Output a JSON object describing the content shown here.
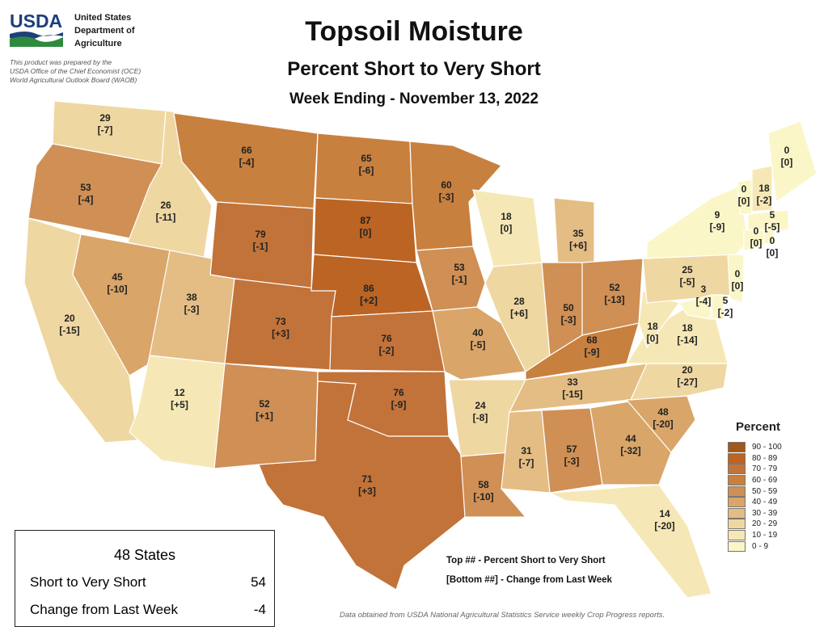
{
  "header": {
    "logo_text": "USDA",
    "agency_lines": [
      "United States",
      "Department of",
      "Agriculture"
    ],
    "credit_lines": [
      "This product was prepared by the",
      "USDA Office of the Chief Economist (OCE)",
      "World Agricultural Outlook Board (WAOB)"
    ],
    "title": "Topsoil Moisture",
    "subtitle": "Percent Short to Very Short",
    "date_line": "Week Ending - November 13, 2022"
  },
  "legend": {
    "title": "Percent",
    "classes": [
      {
        "label": "90 - 100",
        "color": "#a4561b"
      },
      {
        "label": "80 - 89",
        "color": "#bb6424"
      },
      {
        "label": "70 - 79",
        "color": "#c2733a"
      },
      {
        "label": "60 - 69",
        "color": "#c8803f"
      },
      {
        "label": "50 - 59",
        "color": "#cf8f55"
      },
      {
        "label": "40 - 49",
        "color": "#d9a569"
      },
      {
        "label": "30 - 39",
        "color": "#e4bd84"
      },
      {
        "label": "20 - 29",
        "color": "#efd7a2"
      },
      {
        "label": "10 - 19",
        "color": "#f6e8b6"
      },
      {
        "label": "0 - 9",
        "color": "#fbf6c8"
      }
    ]
  },
  "states": [
    {
      "code": "WA",
      "value": "29",
      "change": "[-7]"
    },
    {
      "code": "OR",
      "value": "53",
      "change": "[-4]"
    },
    {
      "code": "CA",
      "value": "20",
      "change": "[-15]"
    },
    {
      "code": "ID",
      "value": "26",
      "change": "[-11]"
    },
    {
      "code": "NV",
      "value": "45",
      "change": "[-10]"
    },
    {
      "code": "MT",
      "value": "66",
      "change": "[-4]"
    },
    {
      "code": "WY",
      "value": "79",
      "change": "[-1]"
    },
    {
      "code": "UT",
      "value": "38",
      "change": "[-3]"
    },
    {
      "code": "AZ",
      "value": "12",
      "change": "[+5]"
    },
    {
      "code": "CO",
      "value": "73",
      "change": "[+3]"
    },
    {
      "code": "NM",
      "value": "52",
      "change": "[+1]"
    },
    {
      "code": "ND",
      "value": "65",
      "change": "[-6]"
    },
    {
      "code": "SD",
      "value": "87",
      "change": "[0]"
    },
    {
      "code": "NE",
      "value": "86",
      "change": "[+2]"
    },
    {
      "code": "KS",
      "value": "76",
      "change": "[-2]"
    },
    {
      "code": "OK",
      "value": "76",
      "change": "[-9]"
    },
    {
      "code": "TX",
      "value": "71",
      "change": "[+3]"
    },
    {
      "code": "MN",
      "value": "60",
      "change": "[-3]"
    },
    {
      "code": "IA",
      "value": "53",
      "change": "[-1]"
    },
    {
      "code": "MO",
      "value": "40",
      "change": "[-5]"
    },
    {
      "code": "AR",
      "value": "24",
      "change": "[-8]"
    },
    {
      "code": "LA",
      "value": "58",
      "change": "[-10]"
    },
    {
      "code": "WI",
      "value": "18",
      "change": "[0]"
    },
    {
      "code": "IL",
      "value": "28",
      "change": "[+6]"
    },
    {
      "code": "MI",
      "value": "35",
      "change": "[+6]"
    },
    {
      "code": "IN",
      "value": "50",
      "change": "[-3]"
    },
    {
      "code": "OH",
      "value": "52",
      "change": "[-13]"
    },
    {
      "code": "KY",
      "value": "68",
      "change": "[-9]"
    },
    {
      "code": "TN",
      "value": "33",
      "change": "[-15]"
    },
    {
      "code": "MS",
      "value": "31",
      "change": "[-7]"
    },
    {
      "code": "AL",
      "value": "57",
      "change": "[-3]"
    },
    {
      "code": "GA",
      "value": "44",
      "change": "[-32]"
    },
    {
      "code": "FL",
      "value": "14",
      "change": "[-20]"
    },
    {
      "code": "SC",
      "value": "48",
      "change": "[-20]"
    },
    {
      "code": "NC",
      "value": "20",
      "change": "[-27]"
    },
    {
      "code": "VA",
      "value": "18",
      "change": "[-14]"
    },
    {
      "code": "WV",
      "value": "18",
      "change": "[0]"
    },
    {
      "code": "PA",
      "value": "25",
      "change": "[-5]"
    },
    {
      "code": "MD",
      "value": "3",
      "change": "[-4]"
    },
    {
      "code": "DE",
      "value": "5",
      "change": "[-2]"
    },
    {
      "code": "NJ",
      "value": "0",
      "change": "[0]"
    },
    {
      "code": "NY",
      "value": "9",
      "change": "[-9]"
    },
    {
      "code": "CT",
      "value": "0",
      "change": "[0]"
    },
    {
      "code": "RI",
      "value": "0",
      "change": "[0]"
    },
    {
      "code": "MA",
      "value": "5",
      "change": "[-5]"
    },
    {
      "code": "VT",
      "value": "0",
      "change": "[0]"
    },
    {
      "code": "NH",
      "value": "18",
      "change": "[-2]"
    },
    {
      "code": "ME",
      "value": "0",
      "change": "[0]"
    }
  ],
  "summary": {
    "title": "48 States",
    "rows": [
      {
        "label": "Short to Very Short",
        "value": "54"
      },
      {
        "label": "Change from Last Week",
        "value": "-4"
      }
    ]
  },
  "key_notes": [
    "Top ## - Percent Short to Very Short",
    "[Bottom ##] - Change from Last Week"
  ],
  "source_note": "Data obtained from USDA National Agricultural Statistics Service weekly Crop Progress reports."
}
